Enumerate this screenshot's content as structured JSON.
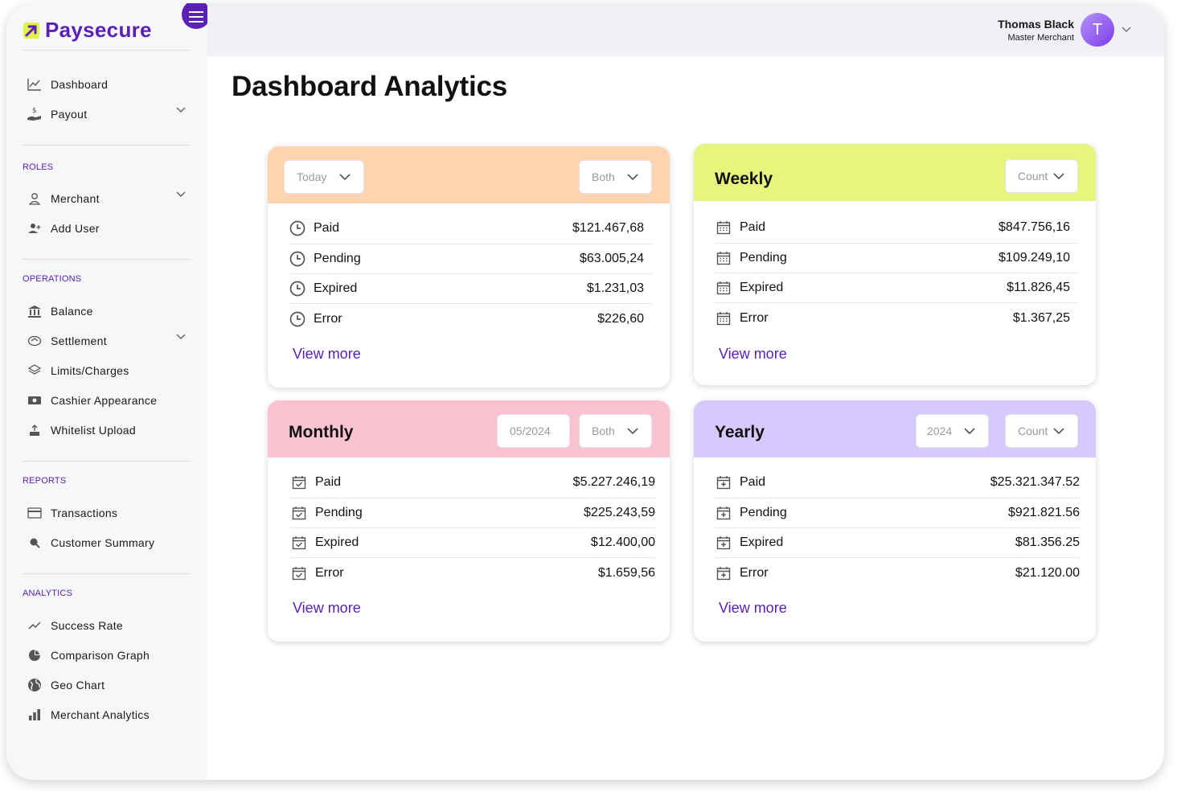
{
  "brand": {
    "name": "Paysecure",
    "accent": "#5b21b6",
    "logo_yellow": "#e0f24a"
  },
  "sidebar": {
    "top_items": [
      {
        "label": "Dashboard",
        "icon": "line-chart-icon"
      },
      {
        "label": "Payout",
        "icon": "hand-dollar-icon",
        "has_chevron": true
      }
    ],
    "sections": [
      {
        "label": "ROLES",
        "items": [
          {
            "label": "Merchant",
            "icon": "user-icon",
            "has_chevron": true
          },
          {
            "label": "Add User",
            "icon": "add-user-icon"
          }
        ]
      },
      {
        "label": "OPERATIONS",
        "items": [
          {
            "label": "Balance",
            "icon": "bank-icon"
          },
          {
            "label": "Settlement",
            "icon": "settlement-icon",
            "has_chevron": true
          },
          {
            "label": "Limits/Charges",
            "icon": "layers-icon"
          },
          {
            "label": "Cashier Appearance",
            "icon": "cash-icon"
          },
          {
            "label": "Whitelist Upload",
            "icon": "upload-icon"
          }
        ]
      },
      {
        "label": "REPORTS",
        "items": [
          {
            "label": "Transactions",
            "icon": "credit-card-icon"
          },
          {
            "label": "Customer Summary",
            "icon": "search-icon"
          }
        ]
      },
      {
        "label": "ANALYTICS",
        "items": [
          {
            "label": "Success Rate",
            "icon": "trend-icon"
          },
          {
            "label": "Comparison Graph",
            "icon": "pie-chart-icon"
          },
          {
            "label": "Geo Chart",
            "icon": "globe-icon"
          },
          {
            "label": "Merchant Analytics",
            "icon": "bar-chart-icon"
          }
        ]
      }
    ]
  },
  "header": {
    "user_name": "Thomas Black",
    "user_role": "Master Merchant",
    "avatar_initial": "T"
  },
  "page": {
    "title": "Dashboard Analytics"
  },
  "cards": [
    {
      "id": "today",
      "title": "",
      "head_color": "#fdd3b0",
      "row_icon": "clock-icon",
      "selects": [
        {
          "value": "Today"
        },
        {
          "value": "Both"
        }
      ],
      "rows": [
        {
          "label": "Paid",
          "value": "$121.467,68"
        },
        {
          "label": "Pending",
          "value": "$63.005,24"
        },
        {
          "label": "Expired",
          "value": "$1.231,03"
        },
        {
          "label": "Error",
          "value": "$226,60"
        }
      ],
      "link": "View more"
    },
    {
      "id": "weekly",
      "title": "Weekly",
      "head_color": "#e6f57e",
      "row_icon": "calendar-icon",
      "selects": [
        {
          "value": "Count"
        }
      ],
      "rows": [
        {
          "label": "Paid",
          "value": "$847.756,16"
        },
        {
          "label": "Pending",
          "value": "$109.249,10"
        },
        {
          "label": "Expired",
          "value": "$11.826,45"
        },
        {
          "label": "Error",
          "value": "$1.367,25"
        }
      ],
      "link": "View more"
    },
    {
      "id": "monthly",
      "title": "Monthly",
      "head_color": "#fbc2d2",
      "row_icon": "calendar-check-icon",
      "selects": [
        {
          "value": "05/2024"
        },
        {
          "value": "Both"
        }
      ],
      "rows": [
        {
          "label": "Paid",
          "value": "$5.227.246,19"
        },
        {
          "label": "Pending",
          "value": "$225.243,59"
        },
        {
          "label": "Expired",
          "value": "$12.400,00"
        },
        {
          "label": "Error",
          "value": "$1.659,56"
        }
      ],
      "link": "View more"
    },
    {
      "id": "yearly",
      "title": "Yearly",
      "head_color": "#d7c9fb",
      "row_icon": "calendar-plus-icon",
      "selects": [
        {
          "value": "2024"
        },
        {
          "value": "Count"
        }
      ],
      "rows": [
        {
          "label": "Paid",
          "value": "$25.321.347.52"
        },
        {
          "label": "Pending",
          "value": "$921.821.56"
        },
        {
          "label": "Expired",
          "value": "$81.356.25"
        },
        {
          "label": "Error",
          "value": "$21.120.00"
        }
      ],
      "link": "View more"
    }
  ]
}
